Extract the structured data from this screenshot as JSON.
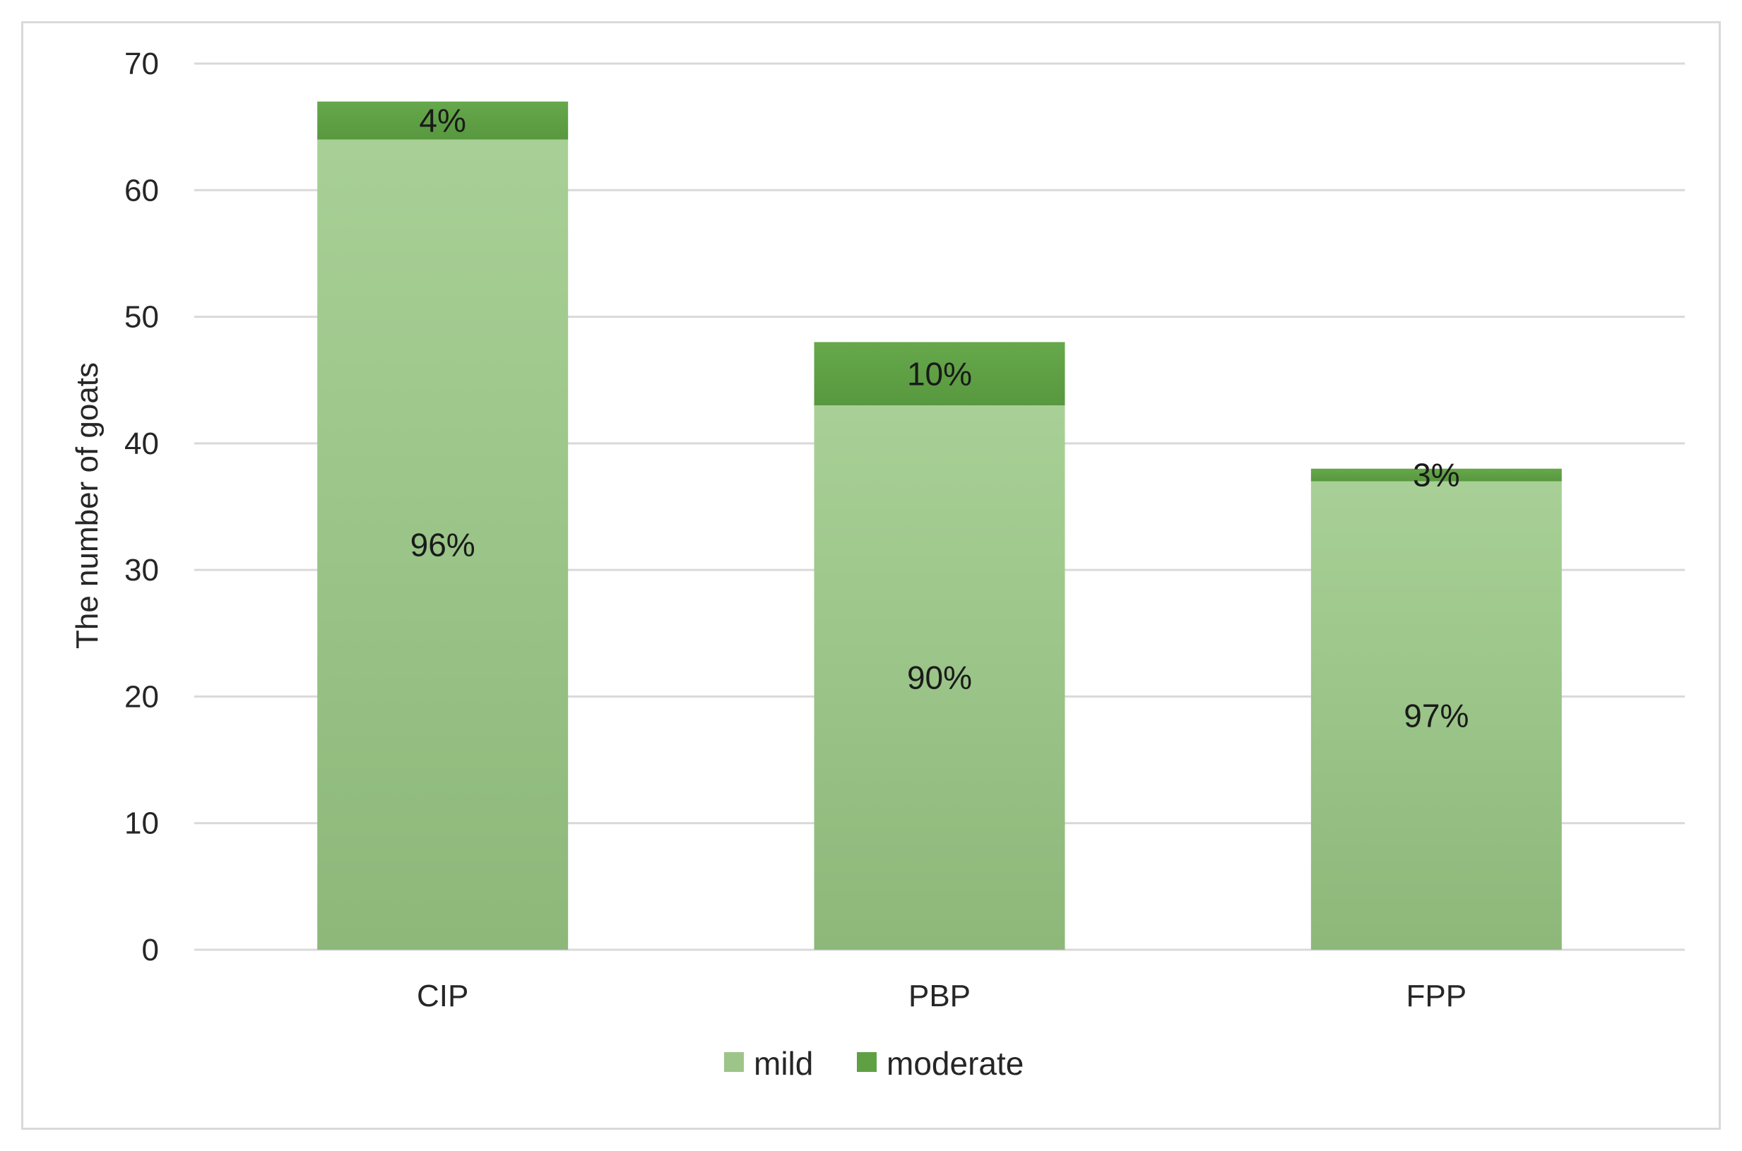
{
  "chart_data": {
    "type": "bar",
    "stacked": true,
    "categories": [
      "CIP",
      "PBP",
      "FPP"
    ],
    "series": [
      {
        "name": "mild",
        "values": [
          64,
          43,
          37
        ],
        "labels": [
          "96%",
          "90%",
          "97%"
        ],
        "color": "#9dc58a"
      },
      {
        "name": "moderate",
        "values": [
          3,
          5,
          1
        ],
        "labels": [
          "4%",
          "10%",
          "3%"
        ],
        "color": "#5fa044"
      }
    ],
    "title": "",
    "xlabel": "",
    "ylabel": "The number of goats",
    "ylim": [
      0,
      70
    ],
    "yticks": [
      "0",
      "10",
      "20",
      "30",
      "40",
      "50",
      "60",
      "70"
    ],
    "grid": true,
    "legend_position": "bottom"
  }
}
